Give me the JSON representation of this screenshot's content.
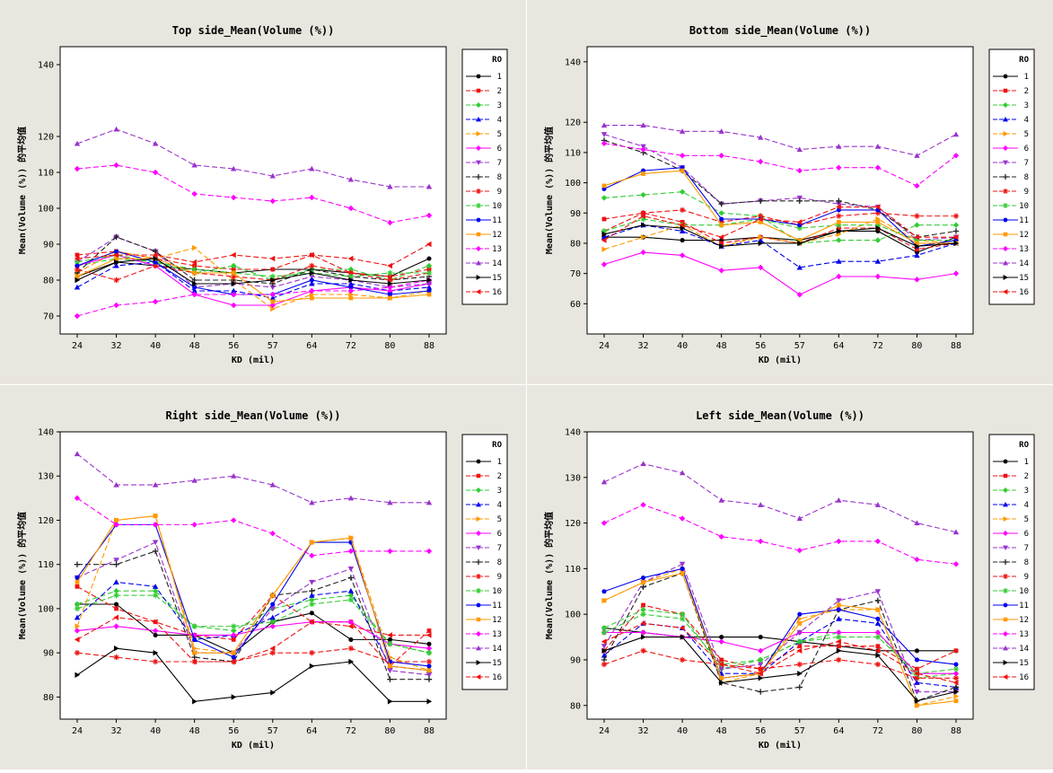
{
  "panels": [
    {
      "title": "Top side_Mean(Volume (%))",
      "xlabel": "KD (mil)",
      "ylabel": "Mean(Volume (%)) 的平均值",
      "ylim": [
        65,
        145
      ],
      "yticks": [
        70,
        80,
        90,
        100,
        110,
        120,
        140
      ],
      "series": [
        {
          "name": "1",
          "values": [
            81,
            85,
            84,
            83,
            82,
            83,
            83,
            82,
            81,
            86
          ]
        },
        {
          "name": "2",
          "values": [
            87,
            88,
            86,
            84,
            83,
            83,
            87,
            82,
            81,
            83
          ]
        },
        {
          "name": "3",
          "values": [
            84,
            86,
            85,
            82,
            84,
            80,
            83,
            83,
            80,
            84
          ]
        },
        {
          "name": "4",
          "values": [
            78,
            84,
            85,
            77,
            77,
            75,
            79,
            79,
            77,
            78
          ]
        },
        {
          "name": "5",
          "values": [
            82,
            88,
            86,
            89,
            80,
            72,
            76,
            76,
            75,
            77
          ]
        },
        {
          "name": "6",
          "values": [
            84,
            87,
            84,
            76,
            73,
            73,
            77,
            78,
            77,
            79
          ]
        },
        {
          "name": "7",
          "values": [
            85,
            92,
            88,
            78,
            79,
            78,
            81,
            80,
            78,
            79
          ]
        },
        {
          "name": "8",
          "values": [
            82,
            92,
            88,
            80,
            80,
            79,
            83,
            81,
            80,
            81
          ]
        },
        {
          "name": "9",
          "values": [
            83,
            80,
            84,
            82,
            81,
            80,
            84,
            82,
            80,
            82
          ]
        },
        {
          "name": "10",
          "values": [
            85,
            87,
            85,
            83,
            82,
            81,
            82,
            81,
            82,
            82
          ]
        },
        {
          "name": "11",
          "values": [
            84,
            88,
            85,
            78,
            76,
            76,
            80,
            78,
            76,
            77
          ]
        },
        {
          "name": "12",
          "values": [
            81,
            86,
            86,
            82,
            82,
            74,
            75,
            75,
            75,
            76
          ]
        },
        {
          "name": "13",
          "values": [
            70,
            73,
            74,
            76,
            76,
            76,
            77,
            77,
            78,
            80
          ]
        },
        {
          "name": "14",
          "values": [
            118,
            122,
            118,
            112,
            111,
            109,
            111,
            108,
            106,
            106
          ]
        },
        {
          "name": "15",
          "values": [
            80,
            85,
            86,
            79,
            79,
            80,
            82,
            80,
            79,
            80
          ]
        },
        {
          "name": "16",
          "values": [
            86,
            87,
            87,
            85,
            87,
            86,
            87,
            86,
            84,
            90
          ]
        },
        {
          "name": "",
          "values": [
            111,
            112,
            110,
            104,
            103,
            102,
            103,
            100,
            96,
            98
          ]
        }
      ]
    },
    {
      "title": "Bottom side_Mean(Volume (%))",
      "xlabel": "KD (mil)",
      "ylabel": "Mean(Volume (%)) 的平均值",
      "ylim": [
        50,
        145
      ],
      "yticks": [
        60,
        70,
        80,
        90,
        100,
        110,
        120,
        140
      ],
      "series": [
        {
          "name": "1",
          "values": [
            82,
            82,
            81,
            81,
            82,
            81,
            84,
            84,
            77,
            82
          ]
        },
        {
          "name": "2",
          "values": [
            88,
            90,
            87,
            80,
            82,
            80,
            85,
            85,
            78,
            80
          ]
        },
        {
          "name": "3",
          "values": [
            95,
            96,
            97,
            90,
            89,
            80,
            81,
            81,
            86,
            86
          ]
        },
        {
          "name": "4",
          "values": [
            82,
            86,
            84,
            79,
            81,
            72,
            74,
            74,
            76,
            80
          ]
        },
        {
          "name": "5",
          "values": [
            78,
            82,
            86,
            79,
            82,
            80,
            83,
            88,
            81,
            80
          ]
        },
        {
          "name": "6",
          "values": [
            73,
            77,
            76,
            71,
            72,
            63,
            69,
            69,
            68,
            70
          ]
        },
        {
          "name": "7",
          "values": [
            116,
            112,
            105,
            93,
            94,
            95,
            93,
            92,
            81,
            82
          ]
        },
        {
          "name": "8",
          "values": [
            114,
            110,
            104,
            93,
            94,
            94,
            94,
            91,
            82,
            84
          ]
        },
        {
          "name": "9",
          "values": [
            84,
            90,
            91,
            87,
            89,
            86,
            89,
            90,
            89,
            89
          ]
        },
        {
          "name": "10",
          "values": [
            84,
            88,
            86,
            86,
            88,
            85,
            86,
            86,
            81,
            81
          ]
        },
        {
          "name": "11",
          "values": [
            98,
            104,
            105,
            88,
            88,
            86,
            91,
            91,
            79,
            81
          ]
        },
        {
          "name": "12",
          "values": [
            99,
            103,
            104,
            86,
            87,
            81,
            87,
            87,
            80,
            80
          ]
        },
        {
          "name": "13",
          "values": [
            113,
            111,
            109,
            109,
            107,
            104,
            105,
            105,
            99,
            109
          ]
        },
        {
          "name": "14",
          "values": [
            119,
            119,
            117,
            117,
            115,
            111,
            112,
            112,
            109,
            116
          ]
        },
        {
          "name": "15",
          "values": [
            83,
            86,
            85,
            79,
            80,
            80,
            84,
            85,
            79,
            80
          ]
        },
        {
          "name": "16",
          "values": [
            81,
            89,
            86,
            82,
            88,
            87,
            92,
            92,
            82,
            82
          ]
        }
      ]
    },
    {
      "title": "Right side_Mean(Volume (%))",
      "xlabel": "KD (mil)",
      "ylabel": "Mean(Volume (%)) 的平均值",
      "ylim": [
        75,
        140
      ],
      "yticks": [
        80,
        90,
        100,
        110,
        120,
        130,
        140
      ],
      "series": [
        {
          "name": "1",
          "values": [
            101,
            101,
            94,
            94,
            90,
            97,
            99,
            93,
            93,
            92
          ]
        },
        {
          "name": "2",
          "values": [
            105,
            100,
            97,
            94,
            93,
            103,
            97,
            97,
            87,
            95
          ]
        },
        {
          "name": "3",
          "values": [
            101,
            104,
            104,
            96,
            95,
            100,
            102,
            103,
            92,
            90
          ]
        },
        {
          "name": "4",
          "values": [
            98,
            106,
            105,
            93,
            94,
            98,
            103,
            104,
            87,
            86
          ]
        },
        {
          "name": "5",
          "values": [
            96,
            120,
            121,
            91,
            90,
            103,
            115,
            116,
            89,
            86
          ]
        },
        {
          "name": "6",
          "values": [
            95,
            96,
            95,
            94,
            94,
            96,
            97,
            97,
            92,
            91
          ]
        },
        {
          "name": "7",
          "values": [
            107,
            111,
            115,
            90,
            90,
            100,
            106,
            109,
            86,
            85
          ]
        },
        {
          "name": "8",
          "values": [
            110,
            110,
            113,
            89,
            88,
            103,
            104,
            107,
            84,
            84
          ]
        },
        {
          "name": "9",
          "values": [
            90,
            89,
            88,
            88,
            88,
            90,
            90,
            91,
            88,
            88
          ]
        },
        {
          "name": "10",
          "values": [
            100,
            103,
            103,
            96,
            96,
            97,
            101,
            102,
            92,
            90
          ]
        },
        {
          "name": "11",
          "values": [
            107,
            119,
            119,
            93,
            89,
            101,
            115,
            115,
            88,
            87
          ]
        },
        {
          "name": "12",
          "values": [
            106,
            120,
            121,
            90,
            90,
            103,
            115,
            116,
            87,
            86
          ]
        },
        {
          "name": "13",
          "values": [
            125,
            119,
            119,
            119,
            120,
            117,
            112,
            113,
            113,
            113
          ]
        },
        {
          "name": "14",
          "values": [
            135,
            128,
            128,
            129,
            130,
            128,
            124,
            125,
            124,
            124
          ]
        },
        {
          "name": "15",
          "values": [
            85,
            91,
            90,
            79,
            80,
            81,
            87,
            88,
            79,
            79
          ]
        },
        {
          "name": "16",
          "values": [
            93,
            98,
            97,
            88,
            88,
            91,
            97,
            96,
            94,
            94
          ]
        }
      ]
    },
    {
      "title": "Left side_Mean(Volume (%))",
      "xlabel": "KD (mil)",
      "ylabel": "Mean(Volume (%)) 的平均值",
      "ylim": [
        77,
        140
      ],
      "yticks": [
        80,
        90,
        100,
        110,
        120,
        130,
        140
      ],
      "series": [
        {
          "name": "1",
          "values": [
            97,
            96,
            95,
            95,
            95,
            94,
            93,
            92,
            92,
            92
          ]
        },
        {
          "name": "2",
          "values": [
            92,
            102,
            100,
            90,
            88,
            93,
            93,
            93,
            88,
            92
          ]
        },
        {
          "name": "3",
          "values": [
            97,
            101,
            100,
            88,
            90,
            94,
            96,
            96,
            86,
            87
          ]
        },
        {
          "name": "4",
          "values": [
            91,
            98,
            97,
            87,
            87,
            94,
            99,
            98,
            85,
            84
          ]
        },
        {
          "name": "5",
          "values": [
            103,
            107,
            110,
            85,
            87,
            99,
            101,
            101,
            80,
            82
          ]
        },
        {
          "name": "6",
          "values": [
            96,
            96,
            95,
            94,
            92,
            96,
            96,
            96,
            87,
            87
          ]
        },
        {
          "name": "7",
          "values": [
            93,
            107,
            111,
            88,
            89,
            96,
            103,
            105,
            83,
            83
          ]
        },
        {
          "name": "8",
          "values": [
            90,
            106,
            109,
            85,
            83,
            84,
            101,
            103,
            81,
            84
          ]
        },
        {
          "name": "9",
          "values": [
            89,
            92,
            90,
            89,
            88,
            89,
            90,
            89,
            86,
            86
          ]
        },
        {
          "name": "10",
          "values": [
            96,
            100,
            99,
            89,
            90,
            94,
            95,
            95,
            87,
            88
          ]
        },
        {
          "name": "11",
          "values": [
            105,
            108,
            110,
            86,
            87,
            100,
            101,
            99,
            90,
            89
          ]
        },
        {
          "name": "12",
          "values": [
            103,
            107,
            109,
            86,
            87,
            98,
            102,
            101,
            80,
            81
          ]
        },
        {
          "name": "13",
          "values": [
            120,
            124,
            121,
            117,
            116,
            114,
            116,
            116,
            112,
            111
          ]
        },
        {
          "name": "14",
          "values": [
            129,
            133,
            131,
            125,
            124,
            121,
            125,
            124,
            120,
            118
          ]
        },
        {
          "name": "15",
          "values": [
            92,
            95,
            95,
            85,
            86,
            87,
            92,
            91,
            81,
            83
          ]
        },
        {
          "name": "16",
          "values": [
            94,
            98,
            97,
            89,
            87,
            92,
            94,
            92,
            87,
            85
          ]
        }
      ]
    }
  ],
  "chart_data": {
    "type": "line",
    "x": [
      "24",
      "32",
      "40",
      "48",
      "56",
      "57",
      "64",
      "72",
      "80",
      "88"
    ],
    "legend_title": "RO",
    "legend_position": "right",
    "colors": [
      "#000000",
      "#ee1111",
      "#33cc33",
      "#0000ee",
      "#ff9900",
      "#ff00ff",
      "#9933cc",
      "#222222",
      "#ee1111",
      "#33cc33",
      "#0000ee",
      "#ff9900",
      "#ff00ff",
      "#9933cc",
      "#000000",
      "#ee1111"
    ],
    "markers": [
      "circle",
      "square",
      "diamond",
      "triangle-up",
      "triangle-right",
      "diamond",
      "triangle-down",
      "plus",
      "star",
      "star",
      "circle",
      "square",
      "diamond",
      "triangle-up",
      "triangle-right",
      "triangle-left"
    ],
    "dashed": [
      false,
      true,
      true,
      true,
      true,
      false,
      true,
      true,
      true,
      true,
      false,
      false,
      true,
      true,
      false,
      true
    ],
    "grid": false
  }
}
